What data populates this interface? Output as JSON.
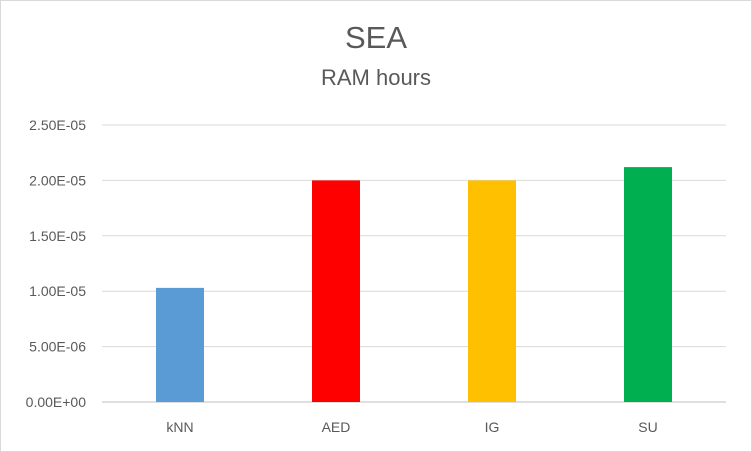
{
  "chart_data": {
    "type": "bar",
    "title": "SEA",
    "subtitle": "RAM hours",
    "categories": [
      "kNN",
      "AED",
      "IG",
      "SU"
    ],
    "values": [
      1.03e-05,
      2e-05,
      2e-05,
      2.12e-05
    ],
    "colors": [
      "#5b9bd5",
      "#ff0000",
      "#ffc000",
      "#00b050"
    ],
    "ylim": [
      0,
      2.5e-05
    ],
    "yticks": [
      0,
      5e-06,
      1e-05,
      1.5e-05,
      2e-05,
      2.5e-05
    ],
    "ytick_labels": [
      "0.00E+00",
      "5.00E-06",
      "1.00E-05",
      "1.50E-05",
      "2.00E-05",
      "2.50E-05"
    ],
    "grid": true,
    "legend": "none",
    "xlabel": "",
    "ylabel": ""
  }
}
